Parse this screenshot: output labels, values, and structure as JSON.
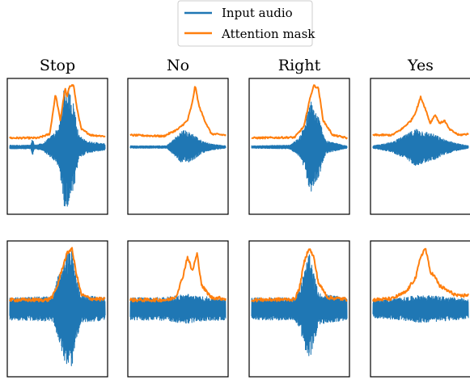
{
  "legend": {
    "items": [
      {
        "label": "Input audio",
        "color": "#1f77b4"
      },
      {
        "label": "Attention mask",
        "color": "#ff7f0e"
      }
    ]
  },
  "chart_data": {
    "type": "line",
    "layout": {
      "rows": 2,
      "cols": 4
    },
    "grid": false,
    "axes_ticks": false,
    "legend_placement": "top-center",
    "panels": [
      {
        "row": 0,
        "col": 0,
        "title": "Stop",
        "noise": "low",
        "audio_envelope": [
          [
            0,
            0.03
          ],
          [
            0.22,
            0.03
          ],
          [
            0.24,
            0.15
          ],
          [
            0.26,
            0.03
          ],
          [
            0.35,
            0.06
          ],
          [
            0.45,
            0.2
          ],
          [
            0.52,
            0.35
          ],
          [
            0.57,
            0.95
          ],
          [
            0.62,
            0.95
          ],
          [
            0.68,
            0.65
          ],
          [
            0.72,
            0.2
          ],
          [
            0.8,
            0.1
          ],
          [
            1,
            0.05
          ]
        ],
        "mask_points": [
          [
            0,
            0.05
          ],
          [
            0.3,
            0.05
          ],
          [
            0.42,
            0.12
          ],
          [
            0.48,
            0.8
          ],
          [
            0.53,
            0.35
          ],
          [
            0.58,
            0.9
          ],
          [
            0.6,
            0.75
          ],
          [
            0.63,
            0.95
          ],
          [
            0.67,
            0.95
          ],
          [
            0.7,
            0.6
          ],
          [
            0.75,
            0.2
          ],
          [
            0.85,
            0.1
          ],
          [
            1,
            0.08
          ]
        ]
      },
      {
        "row": 0,
        "col": 1,
        "title": "No",
        "noise": "low",
        "audio_envelope": [
          [
            0,
            0.02
          ],
          [
            0.38,
            0.02
          ],
          [
            0.45,
            0.12
          ],
          [
            0.55,
            0.28
          ],
          [
            0.65,
            0.22
          ],
          [
            0.75,
            0.1
          ],
          [
            0.85,
            0.05
          ],
          [
            1,
            0.02
          ]
        ],
        "mask_points": [
          [
            0,
            0.1
          ],
          [
            0.35,
            0.08
          ],
          [
            0.5,
            0.2
          ],
          [
            0.6,
            0.35
          ],
          [
            0.65,
            0.65
          ],
          [
            0.68,
            0.95
          ],
          [
            0.72,
            0.6
          ],
          [
            0.78,
            0.35
          ],
          [
            0.85,
            0.12
          ],
          [
            1,
            0.1
          ]
        ]
      },
      {
        "row": 0,
        "col": 2,
        "title": "Right",
        "noise": "low",
        "audio_envelope": [
          [
            0,
            0.02
          ],
          [
            0.4,
            0.03
          ],
          [
            0.5,
            0.15
          ],
          [
            0.55,
            0.35
          ],
          [
            0.62,
            0.75
          ],
          [
            0.7,
            0.5
          ],
          [
            0.78,
            0.1
          ],
          [
            1,
            0.02
          ]
        ],
        "mask_points": [
          [
            0,
            0.05
          ],
          [
            0.45,
            0.06
          ],
          [
            0.55,
            0.25
          ],
          [
            0.6,
            0.65
          ],
          [
            0.65,
            0.95
          ],
          [
            0.7,
            0.9
          ],
          [
            0.75,
            0.35
          ],
          [
            0.85,
            0.1
          ],
          [
            1,
            0.05
          ]
        ]
      },
      {
        "row": 0,
        "col": 3,
        "title": "Yes",
        "noise": "low",
        "audio_envelope": [
          [
            0,
            0.02
          ],
          [
            0.2,
            0.08
          ],
          [
            0.35,
            0.2
          ],
          [
            0.45,
            0.3
          ],
          [
            0.55,
            0.25
          ],
          [
            0.65,
            0.2
          ],
          [
            0.75,
            0.12
          ],
          [
            0.9,
            0.05
          ],
          [
            1,
            0.02
          ]
        ],
        "mask_points": [
          [
            0,
            0.1
          ],
          [
            0.2,
            0.1
          ],
          [
            0.3,
            0.2
          ],
          [
            0.4,
            0.35
          ],
          [
            0.45,
            0.5
          ],
          [
            0.48,
            0.65
          ],
          [
            0.5,
            0.75
          ],
          [
            0.55,
            0.55
          ],
          [
            0.6,
            0.3
          ],
          [
            0.65,
            0.45
          ],
          [
            0.7,
            0.3
          ],
          [
            0.75,
            0.35
          ],
          [
            0.8,
            0.2
          ],
          [
            0.9,
            0.1
          ],
          [
            1,
            0.12
          ]
        ]
      },
      {
        "row": 1,
        "col": 0,
        "title": "",
        "noise": "high",
        "audio_envelope": [
          [
            0,
            0.18
          ],
          [
            0.45,
            0.2
          ],
          [
            0.5,
            0.5
          ],
          [
            0.55,
            0.7
          ],
          [
            0.6,
            0.95
          ],
          [
            0.65,
            0.95
          ],
          [
            0.7,
            0.5
          ],
          [
            0.75,
            0.22
          ],
          [
            1,
            0.18
          ]
        ],
        "mask_points": [
          [
            0,
            0.06
          ],
          [
            0.4,
            0.06
          ],
          [
            0.45,
            0.12
          ],
          [
            0.5,
            0.3
          ],
          [
            0.55,
            0.6
          ],
          [
            0.6,
            0.85
          ],
          [
            0.65,
            0.95
          ],
          [
            0.7,
            0.5
          ],
          [
            0.75,
            0.15
          ],
          [
            0.85,
            0.08
          ],
          [
            1,
            0.07
          ]
        ]
      },
      {
        "row": 1,
        "col": 1,
        "title": "",
        "noise": "high",
        "audio_envelope": [
          [
            0,
            0.18
          ],
          [
            0.4,
            0.19
          ],
          [
            0.5,
            0.22
          ],
          [
            0.6,
            0.24
          ],
          [
            0.7,
            0.2
          ],
          [
            1,
            0.18
          ]
        ],
        "mask_points": [
          [
            0,
            0.06
          ],
          [
            0.4,
            0.06
          ],
          [
            0.48,
            0.12
          ],
          [
            0.55,
            0.45
          ],
          [
            0.6,
            0.8
          ],
          [
            0.65,
            0.55
          ],
          [
            0.7,
            0.85
          ],
          [
            0.75,
            0.3
          ],
          [
            0.85,
            0.1
          ],
          [
            1,
            0.08
          ]
        ]
      },
      {
        "row": 1,
        "col": 2,
        "title": "",
        "noise": "high",
        "audio_envelope": [
          [
            0,
            0.18
          ],
          [
            0.45,
            0.18
          ],
          [
            0.5,
            0.3
          ],
          [
            0.55,
            0.6
          ],
          [
            0.6,
            0.9
          ],
          [
            0.65,
            0.6
          ],
          [
            0.7,
            0.25
          ],
          [
            1,
            0.18
          ]
        ],
        "mask_points": [
          [
            0,
            0.06
          ],
          [
            0.45,
            0.07
          ],
          [
            0.5,
            0.25
          ],
          [
            0.55,
            0.7
          ],
          [
            0.6,
            0.95
          ],
          [
            0.65,
            0.8
          ],
          [
            0.7,
            0.35
          ],
          [
            0.8,
            0.1
          ],
          [
            1,
            0.07
          ]
        ]
      },
      {
        "row": 1,
        "col": 3,
        "title": "",
        "noise": "high",
        "audio_envelope": [
          [
            0,
            0.15
          ],
          [
            0.3,
            0.18
          ],
          [
            0.5,
            0.22
          ],
          [
            0.7,
            0.2
          ],
          [
            1,
            0.16
          ]
        ],
        "mask_points": [
          [
            0,
            0.06
          ],
          [
            0.2,
            0.08
          ],
          [
            0.35,
            0.2
          ],
          [
            0.45,
            0.45
          ],
          [
            0.5,
            0.8
          ],
          [
            0.55,
            0.95
          ],
          [
            0.6,
            0.55
          ],
          [
            0.65,
            0.45
          ],
          [
            0.7,
            0.3
          ],
          [
            0.8,
            0.2
          ],
          [
            0.9,
            0.12
          ],
          [
            1,
            0.15
          ]
        ]
      }
    ]
  }
}
